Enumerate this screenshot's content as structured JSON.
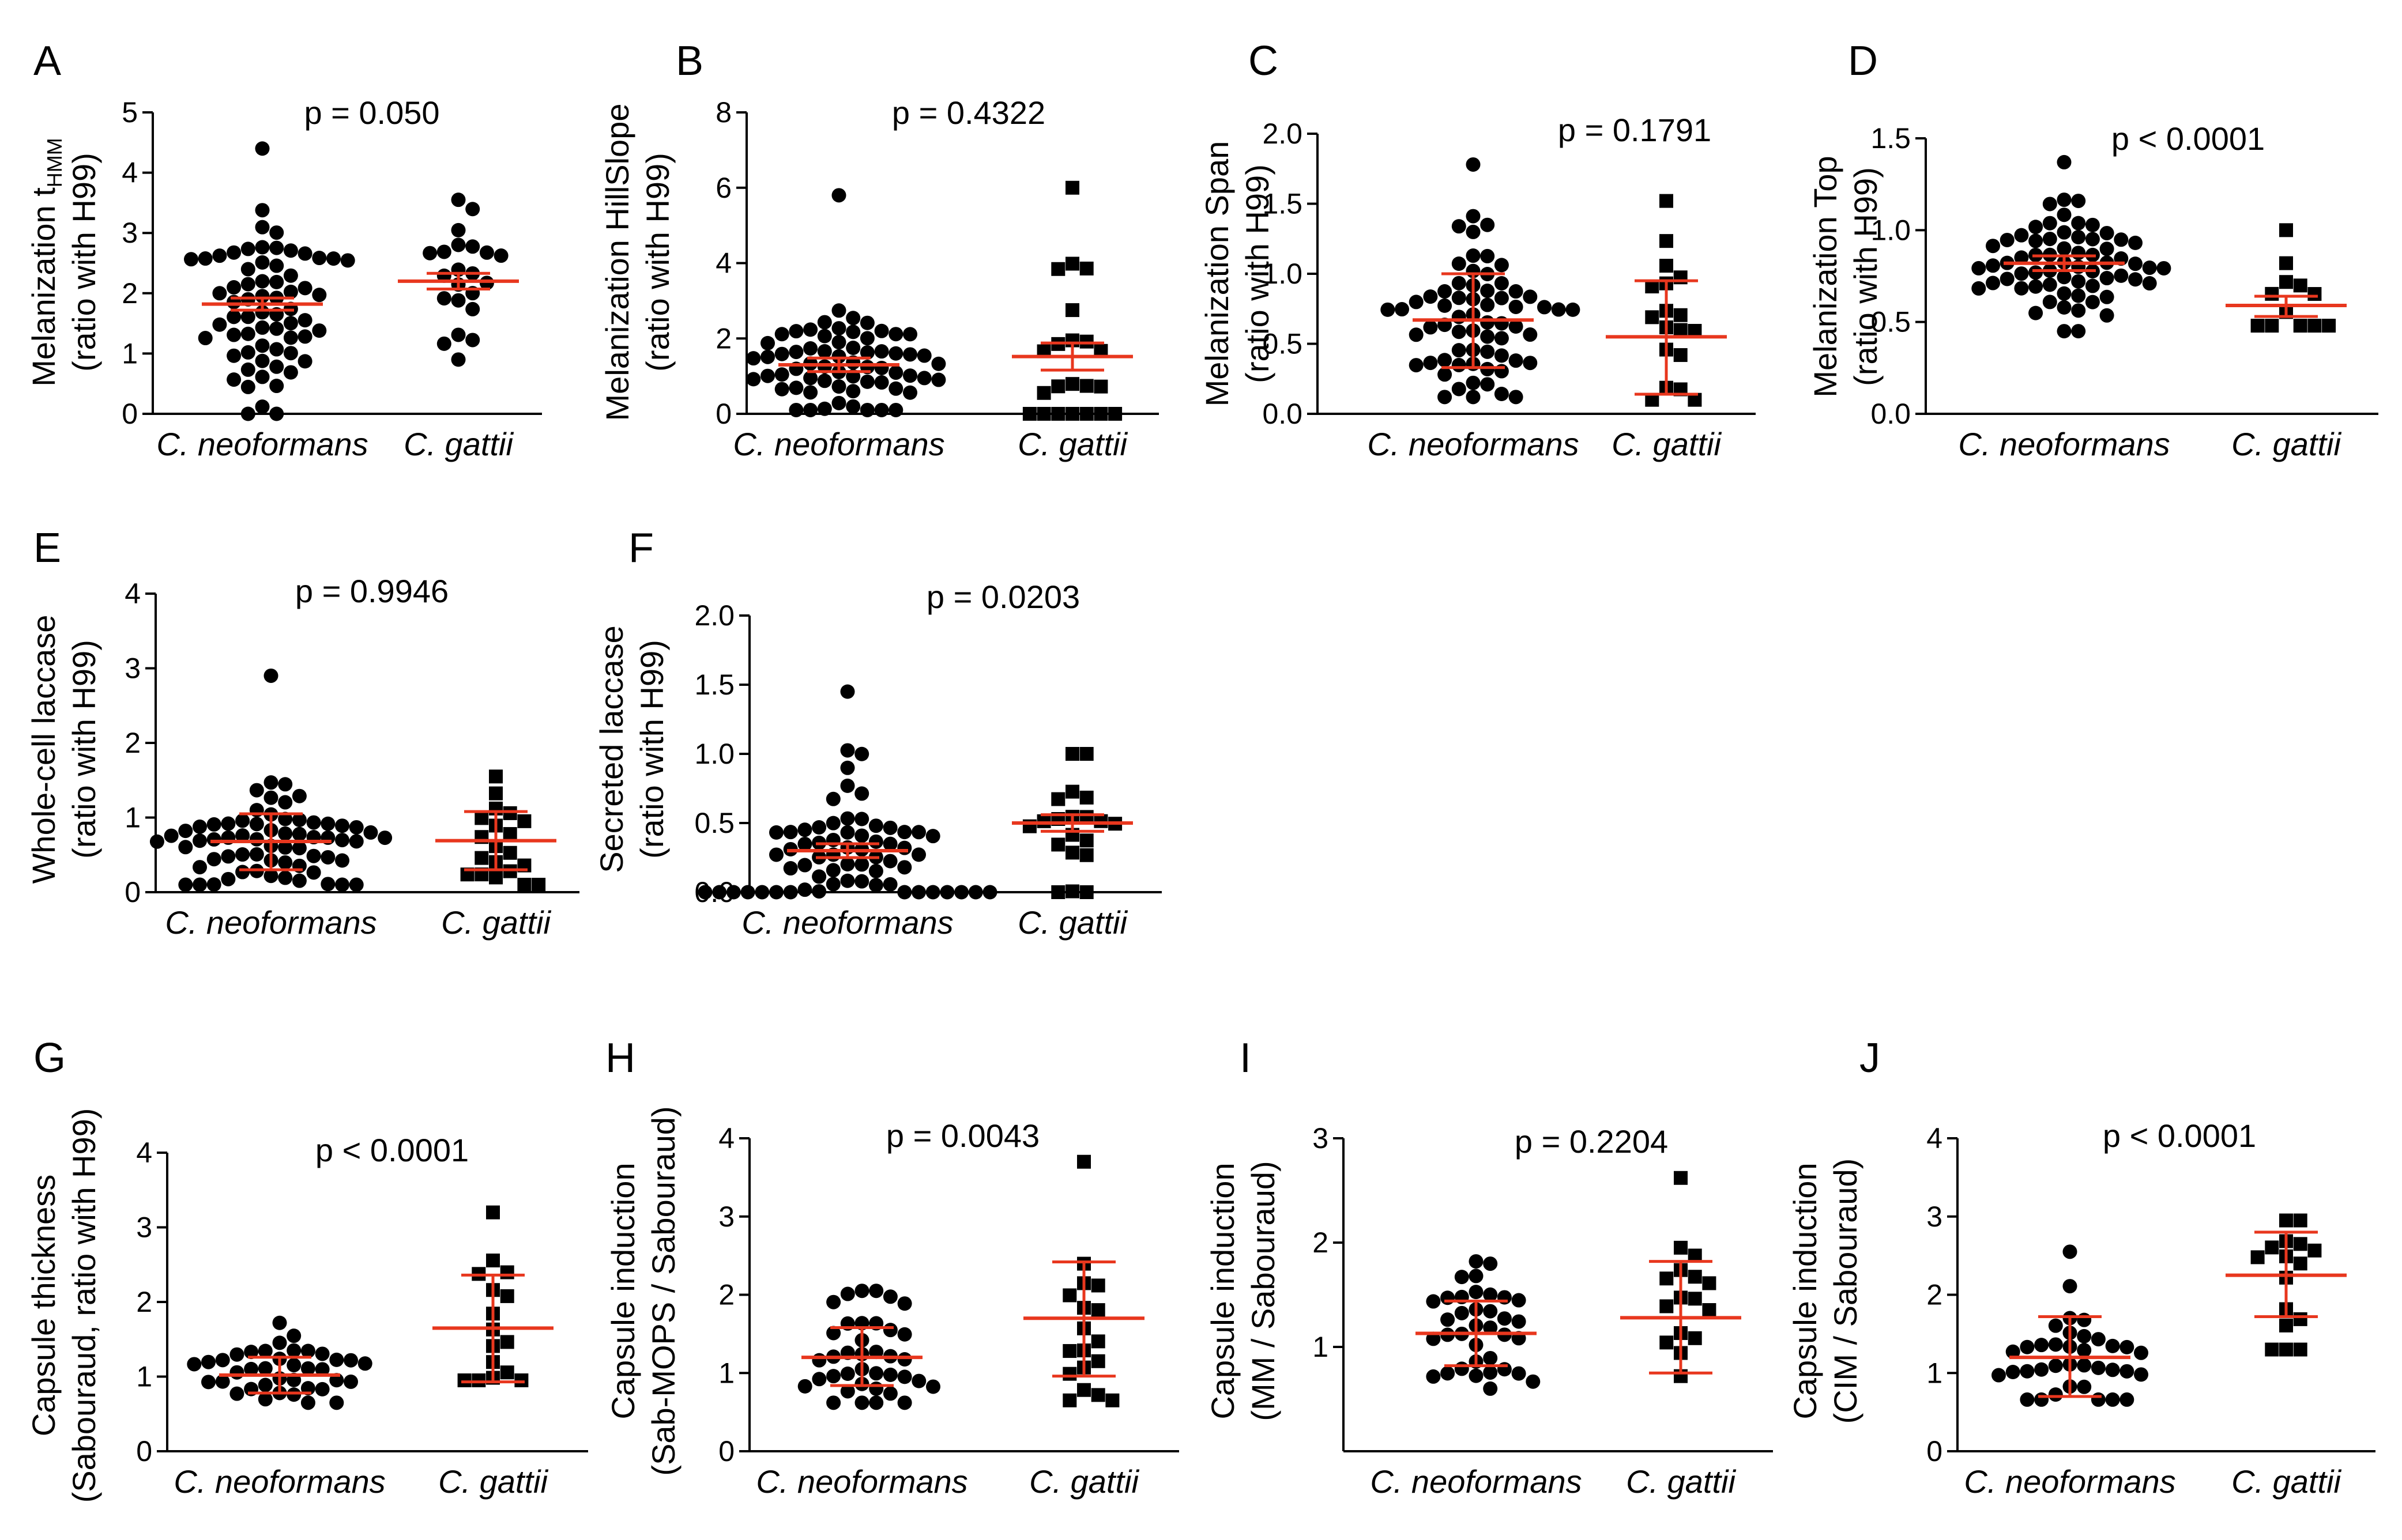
{
  "chart_data": [
    {
      "id": "A",
      "type": "scatter",
      "title": "A",
      "p_text": "p = 0.050",
      "ylabel_lines": [
        "Melanization t",
        "(ratio with H99)"
      ],
      "ylabel_sub": "HMM",
      "categories": [
        "C. neoformans",
        "C. gattii"
      ],
      "ylim": [
        0,
        5
      ],
      "yticks": [
        "0",
        "1",
        "2",
        "3",
        "4",
        "5"
      ],
      "grid": false,
      "series": [
        {
          "name": "C. neoformans",
          "marker": "circle",
          "n": 65,
          "mean": 1.82,
          "sd": 0.75,
          "max": 4.4,
          "min": 0.0,
          "err": [
            1.72,
            1.92
          ]
        },
        {
          "name": "C. gattii",
          "marker": "circle",
          "n": 22,
          "mean": 2.2,
          "sd": 0.6,
          "max": 3.55,
          "min": 0.9,
          "err": [
            2.07,
            2.33
          ]
        }
      ]
    },
    {
      "id": "B",
      "type": "scatter",
      "title": "B",
      "p_text": "p = 0.4322",
      "ylabel_lines": [
        "Melanization HillSlope",
        "(ratio with H99)"
      ],
      "categories": [
        "C. neoformans",
        "C. gattii"
      ],
      "ylim": [
        0,
        8
      ],
      "yticks": [
        "0",
        "2",
        "4",
        "6",
        "8"
      ],
      "grid": false,
      "series": [
        {
          "name": "C. neoformans",
          "marker": "circle",
          "n": 65,
          "mean": 1.3,
          "sd": 0.7,
          "max": 5.8,
          "min": 0.1,
          "err": [
            1.12,
            1.48
          ]
        },
        {
          "name": "C. gattii",
          "marker": "square",
          "n": 22,
          "mean": 1.52,
          "sd": 1.5,
          "max": 6.0,
          "min": 0.0,
          "err": [
            1.16,
            1.88
          ]
        }
      ]
    },
    {
      "id": "C",
      "type": "scatter",
      "title": "C",
      "p_text": "p = 0.1791",
      "ylabel_lines": [
        "Melanization Span",
        "(ratio with H99)"
      ],
      "categories": [
        "C. neoformans",
        "C. gattii"
      ],
      "ylim": [
        0,
        2
      ],
      "yticks": [
        "0.0",
        "0.5",
        "1.0",
        "1.5",
        "2.0"
      ],
      "grid": false,
      "series": [
        {
          "name": "C. neoformans",
          "marker": "circle",
          "n": 65,
          "mean": 0.67,
          "sd": 0.33,
          "max": 1.78,
          "min": 0.12,
          "err": [
            0.33,
            1.0
          ]
        },
        {
          "name": "C. gattii",
          "marker": "square",
          "n": 18,
          "mean": 0.55,
          "sd": 0.4,
          "max": 1.52,
          "min": 0.1,
          "err": [
            0.14,
            0.95
          ]
        }
      ]
    },
    {
      "id": "D",
      "type": "scatter",
      "title": "D",
      "p_text": "p < 0.0001",
      "ylabel_lines": [
        "Melanization Top",
        "(ratio with H99)"
      ],
      "categories": [
        "C. neoformans",
        "C. gattii"
      ],
      "ylim": [
        0,
        1.5
      ],
      "yticks": [
        "0.0",
        "0.5",
        "1.0",
        "1.5"
      ],
      "grid": false,
      "series": [
        {
          "name": "C. neoformans",
          "marker": "circle",
          "n": 65,
          "mean": 0.82,
          "sd": 0.15,
          "max": 1.37,
          "min": 0.45,
          "err": [
            0.78,
            0.86
          ]
        },
        {
          "name": "C. gattii",
          "marker": "square",
          "n": 12,
          "mean": 0.59,
          "sd": 0.15,
          "max": 1.0,
          "min": 0.48,
          "err": [
            0.53,
            0.64
          ]
        }
      ]
    },
    {
      "id": "E",
      "type": "scatter",
      "title": "E",
      "p_text": "p = 0.9946",
      "ylabel_lines": [
        "Whole-cell laccase",
        "(ratio with H99)"
      ],
      "categories": [
        "C. neoformans",
        "C. gattii"
      ],
      "ylim": [
        0,
        4
      ],
      "yticks": [
        "0",
        "1",
        "2",
        "3",
        "4"
      ],
      "grid": false,
      "series": [
        {
          "name": "C. neoformans",
          "marker": "circle",
          "n": 65,
          "mean": 0.68,
          "sd": 0.35,
          "max": 2.9,
          "min": 0.1,
          "err": [
            0.3,
            1.05
          ]
        },
        {
          "name": "C. gattii",
          "marker": "square",
          "n": 20,
          "mean": 0.69,
          "sd": 0.4,
          "max": 1.55,
          "min": 0.1,
          "err": [
            0.3,
            1.08
          ]
        }
      ]
    },
    {
      "id": "F",
      "type": "scatter",
      "title": "F",
      "p_text": "p = 0.0203",
      "ylabel_lines": [
        "Secreted laccase",
        "(ratio with H99)"
      ],
      "categories": [
        "C. neoformans",
        "C. gattii"
      ],
      "ylim": [
        0,
        2
      ],
      "yticks": [
        "0.0",
        "0.5",
        "1.0",
        "1.5",
        "2.0"
      ],
      "grid": false,
      "series": [
        {
          "name": "C. neoformans",
          "marker": "circle",
          "n": 65,
          "mean": 0.3,
          "sd": 0.3,
          "max": 1.45,
          "min": 0.0,
          "err": [
            0.25,
            0.35
          ]
        },
        {
          "name": "C. gattii",
          "marker": "square",
          "n": 20,
          "mean": 0.5,
          "sd": 0.25,
          "max": 1.0,
          "min": 0.0,
          "err": [
            0.44,
            0.56
          ]
        }
      ]
    },
    {
      "id": "G",
      "type": "scatter",
      "title": "G",
      "p_text": "p < 0.0001",
      "ylabel_lines": [
        "Capsule thickness",
        "(Sabouraud, ratio with H99)"
      ],
      "categories": [
        "C. neoformans",
        "C. gattii"
      ],
      "ylim": [
        0,
        4
      ],
      "yticks": [
        "0",
        "1",
        "2",
        "3",
        "4"
      ],
      "grid": false,
      "series": [
        {
          "name": "C. neoformans",
          "marker": "circle",
          "n": 38,
          "mean": 1.02,
          "sd": 0.22,
          "max": 1.72,
          "min": 0.65,
          "err": [
            0.78,
            1.26
          ]
        },
        {
          "name": "C. gattii",
          "marker": "square",
          "n": 16,
          "mean": 1.65,
          "sd": 0.7,
          "max": 3.2,
          "min": 0.95,
          "err": [
            0.93,
            2.36
          ]
        }
      ]
    },
    {
      "id": "H",
      "type": "scatter",
      "title": "H",
      "p_text": "p = 0.0043",
      "ylabel_lines": [
        "Capsule induction",
        "(Sab-MOPS / Sabouraud)"
      ],
      "categories": [
        "C. neoformans",
        "C. gattii"
      ],
      "ylim": [
        0,
        4
      ],
      "yticks": [
        "0",
        "1",
        "2",
        "3",
        "4"
      ],
      "grid": false,
      "series": [
        {
          "name": "C. neoformans",
          "marker": "circle",
          "n": 38,
          "mean": 1.2,
          "sd": 0.35,
          "max": 2.05,
          "min": 0.62,
          "err": [
            0.84,
            1.58
          ]
        },
        {
          "name": "C. gattii",
          "marker": "square",
          "n": 18,
          "mean": 1.7,
          "sd": 0.7,
          "max": 3.7,
          "min": 0.65,
          "err": [
            0.96,
            2.42
          ]
        }
      ]
    },
    {
      "id": "I",
      "type": "scatter",
      "title": "I",
      "p_text": "p = 0.2204",
      "ylabel_lines": [
        "Capsule induction",
        "(MM / Sabouraud)"
      ],
      "categories": [
        "C. neoformans",
        "C. gattii"
      ],
      "ylim": [
        0,
        3
      ],
      "yticks": [
        "1",
        "2",
        "3"
      ],
      "grid": false,
      "series": [
        {
          "name": "C. neoformans",
          "marker": "circle",
          "n": 36,
          "mean": 1.13,
          "sd": 0.3,
          "max": 1.82,
          "min": 0.6,
          "err": [
            0.82,
            1.44
          ]
        },
        {
          "name": "C. gattii",
          "marker": "square",
          "n": 16,
          "mean": 1.28,
          "sd": 0.5,
          "max": 2.62,
          "min": 0.72,
          "err": [
            0.75,
            1.82
          ]
        }
      ]
    },
    {
      "id": "J",
      "type": "scatter",
      "title": "J",
      "p_text": "p < 0.0001",
      "ylabel_lines": [
        "Capsule induction",
        "(CIM / Sabouraud)"
      ],
      "categories": [
        "C. neoformans",
        "C. gattii"
      ],
      "ylim": [
        0,
        4
      ],
      "yticks": [
        "0",
        "1",
        "2",
        "3",
        "4"
      ],
      "grid": false,
      "series": [
        {
          "name": "C. neoformans",
          "marker": "circle",
          "n": 36,
          "mean": 1.2,
          "sd": 0.45,
          "max": 2.55,
          "min": 0.66,
          "err": [
            0.7,
            1.72
          ]
        },
        {
          "name": "C. gattii",
          "marker": "square",
          "n": 16,
          "mean": 2.25,
          "sd": 0.5,
          "max": 2.95,
          "min": 1.3,
          "err": [
            1.72,
            2.8
          ]
        }
      ]
    }
  ],
  "colors": {
    "points": "#000000",
    "mean_line": "#e8371e",
    "axes": "#000000"
  }
}
